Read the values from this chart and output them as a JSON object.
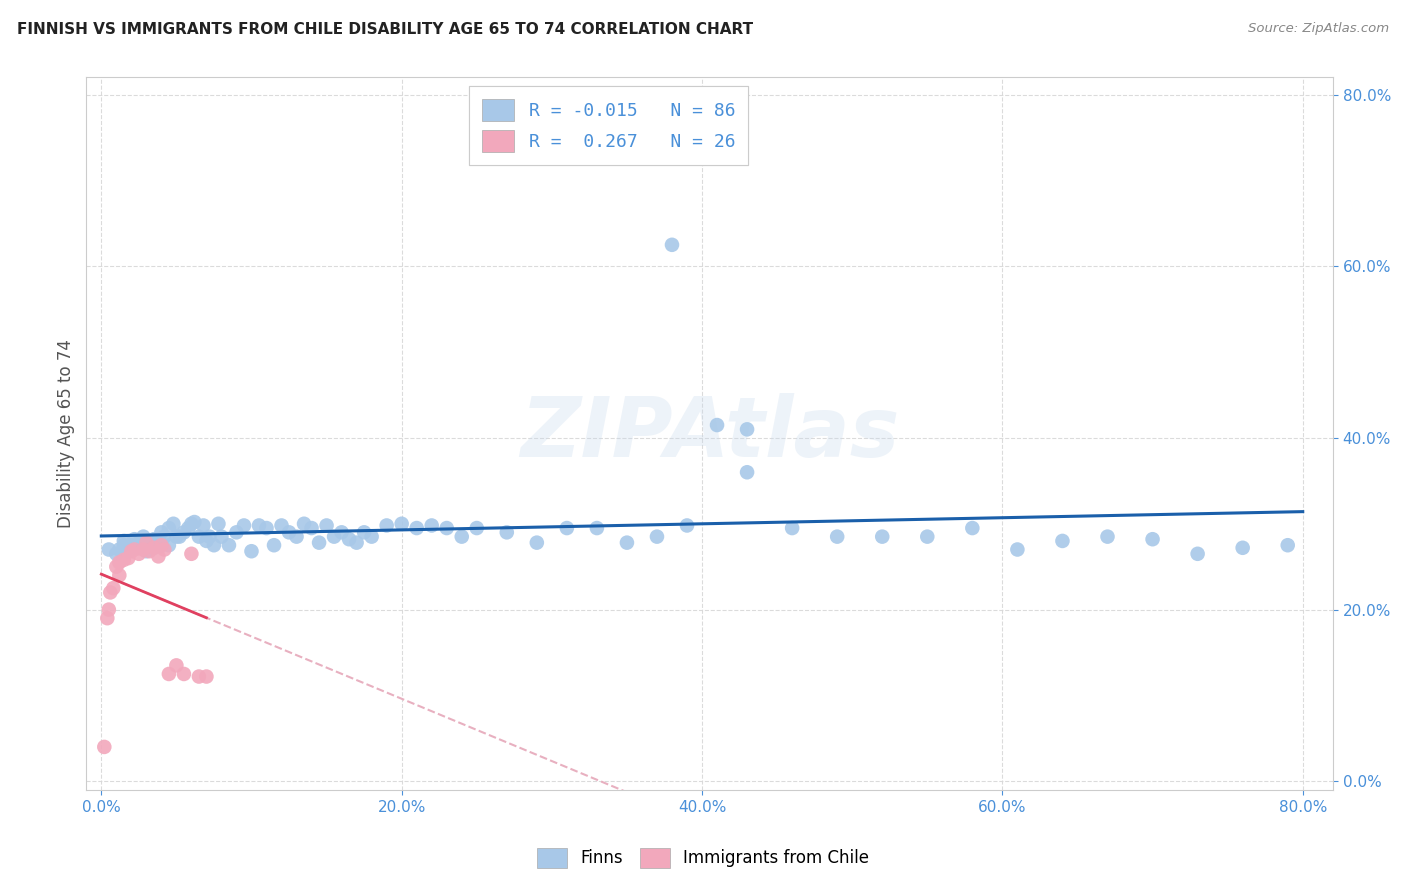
{
  "title": "FINNISH VS IMMIGRANTS FROM CHILE DISABILITY AGE 65 TO 74 CORRELATION CHART",
  "source": "Source: ZipAtlas.com",
  "ylabel": "Disability Age 65 to 74",
  "xlabel": "",
  "xlim": [
    -0.01,
    0.82
  ],
  "ylim": [
    -0.01,
    0.82
  ],
  "yticks": [
    0.0,
    0.2,
    0.4,
    0.6,
    0.8
  ],
  "xticks": [
    0.0,
    0.2,
    0.4,
    0.6,
    0.8
  ],
  "finns_R": -0.015,
  "finns_N": 86,
  "chile_R": 0.267,
  "chile_N": 26,
  "watermark": "ZIPAtlas",
  "legend_labels": [
    "Finns",
    "Immigrants from Chile"
  ],
  "finn_color": "#a8c8e8",
  "chile_color": "#f2a8bc",
  "finn_line_color": "#1a5faa",
  "chile_solid_color": "#e04060",
  "chile_dash_color": "#e8b0c0",
  "background_color": "#ffffff",
  "grid_color": "#d8d8d8",
  "finns_x": [
    0.005,
    0.01,
    0.012,
    0.015,
    0.015,
    0.018,
    0.02,
    0.022,
    0.025,
    0.025,
    0.028,
    0.03,
    0.03,
    0.032,
    0.035,
    0.035,
    0.038,
    0.04,
    0.04,
    0.042,
    0.045,
    0.045,
    0.048,
    0.05,
    0.052,
    0.055,
    0.058,
    0.06,
    0.062,
    0.065,
    0.068,
    0.07,
    0.072,
    0.075,
    0.078,
    0.08,
    0.085,
    0.09,
    0.095,
    0.1,
    0.105,
    0.11,
    0.115,
    0.12,
    0.125,
    0.13,
    0.135,
    0.14,
    0.145,
    0.15,
    0.155,
    0.16,
    0.165,
    0.17,
    0.175,
    0.18,
    0.19,
    0.2,
    0.21,
    0.22,
    0.23,
    0.24,
    0.25,
    0.27,
    0.29,
    0.31,
    0.33,
    0.35,
    0.37,
    0.39,
    0.41,
    0.43,
    0.46,
    0.49,
    0.52,
    0.55,
    0.58,
    0.61,
    0.64,
    0.67,
    0.7,
    0.73,
    0.76,
    0.79,
    0.43,
    0.38
  ],
  "finns_y": [
    0.27,
    0.265,
    0.27,
    0.28,
    0.275,
    0.268,
    0.275,
    0.282,
    0.278,
    0.272,
    0.285,
    0.278,
    0.268,
    0.275,
    0.282,
    0.272,
    0.282,
    0.29,
    0.275,
    0.285,
    0.295,
    0.275,
    0.3,
    0.285,
    0.285,
    0.29,
    0.295,
    0.3,
    0.302,
    0.285,
    0.298,
    0.28,
    0.285,
    0.275,
    0.3,
    0.285,
    0.275,
    0.29,
    0.298,
    0.268,
    0.298,
    0.295,
    0.275,
    0.298,
    0.29,
    0.285,
    0.3,
    0.295,
    0.278,
    0.298,
    0.285,
    0.29,
    0.282,
    0.278,
    0.29,
    0.285,
    0.298,
    0.3,
    0.295,
    0.298,
    0.295,
    0.285,
    0.295,
    0.29,
    0.278,
    0.295,
    0.295,
    0.278,
    0.285,
    0.298,
    0.415,
    0.41,
    0.295,
    0.285,
    0.285,
    0.285,
    0.295,
    0.27,
    0.28,
    0.285,
    0.282,
    0.265,
    0.272,
    0.275,
    0.36,
    0.625
  ],
  "chile_x": [
    0.002,
    0.004,
    0.005,
    0.006,
    0.008,
    0.01,
    0.012,
    0.012,
    0.015,
    0.018,
    0.02,
    0.022,
    0.025,
    0.028,
    0.03,
    0.032,
    0.035,
    0.038,
    0.04,
    0.042,
    0.045,
    0.05,
    0.055,
    0.06,
    0.065,
    0.07
  ],
  "chile_y": [
    0.04,
    0.19,
    0.2,
    0.22,
    0.225,
    0.25,
    0.255,
    0.24,
    0.258,
    0.26,
    0.268,
    0.27,
    0.265,
    0.27,
    0.278,
    0.268,
    0.272,
    0.262,
    0.275,
    0.27,
    0.125,
    0.135,
    0.125,
    0.265,
    0.122,
    0.122
  ]
}
